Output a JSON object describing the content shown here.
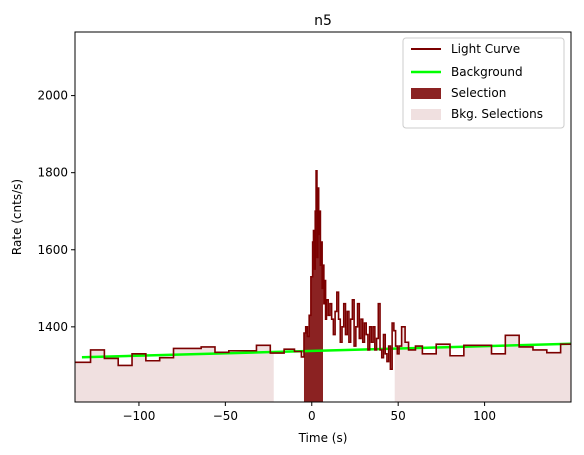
{
  "chart_data": {
    "type": "line",
    "title": "n5",
    "xlabel": "Time (s)",
    "ylabel": "Rate (cnts/s)",
    "xlim": [
      -137,
      150
    ],
    "ylim": [
      1205,
      2165
    ],
    "xticks": [
      -100,
      -50,
      0,
      50,
      100
    ],
    "yticks": [
      1400,
      1600,
      1800,
      2000
    ],
    "legend_position": "top-right",
    "colors": {
      "light_curve": "#7b0000",
      "background": "#00ff00",
      "selection": "#8b2222",
      "bkg_selection": "#f0e0e0"
    },
    "legend": [
      "Light Curve",
      "Background",
      "Selection",
      "Bkg. Selections"
    ],
    "light_curve": {
      "name": "Light Curve",
      "steps": [
        [
          -137,
          1308
        ],
        [
          -128,
          1340
        ],
        [
          -120,
          1318
        ],
        [
          -112,
          1300
        ],
        [
          -104,
          1330
        ],
        [
          -96,
          1312
        ],
        [
          -88,
          1320
        ],
        [
          -80,
          1344
        ],
        [
          -64,
          1348
        ],
        [
          -56,
          1334
        ],
        [
          -48,
          1338
        ],
        [
          -40,
          1338
        ],
        [
          -32,
          1352
        ],
        [
          -24,
          1332
        ],
        [
          -16,
          1342
        ],
        [
          -10,
          1336
        ],
        [
          -6,
          1322
        ],
        [
          -4.5,
          1384
        ],
        [
          -3.5,
          1400
        ],
        [
          -2.5,
          1375
        ],
        [
          -1.5,
          1430
        ],
        [
          -0.5,
          1530
        ],
        [
          0.5,
          1620
        ],
        [
          1,
          1650
        ],
        [
          1.5,
          1550
        ],
        [
          2,
          1700
        ],
        [
          2.5,
          1805
        ],
        [
          3,
          1580
        ],
        [
          3.5,
          1760
        ],
        [
          4,
          1640
        ],
        [
          4.5,
          1700
        ],
        [
          5,
          1560
        ],
        [
          5.5,
          1620
        ],
        [
          6,
          1500
        ],
        [
          6.5,
          1560
        ],
        [
          7,
          1460
        ],
        [
          7.5,
          1520
        ],
        [
          8,
          1420
        ],
        [
          8.5,
          1470
        ],
        [
          9.5,
          1430
        ],
        [
          10.5,
          1460
        ],
        [
          11.5,
          1420
        ],
        [
          12.5,
          1380
        ],
        [
          13.5,
          1440
        ],
        [
          14.5,
          1490
        ],
        [
          15.5,
          1420
        ],
        [
          16.5,
          1360
        ],
        [
          17.5,
          1400
        ],
        [
          18.5,
          1460
        ],
        [
          19.5,
          1380
        ],
        [
          20.5,
          1440
        ],
        [
          21.5,
          1360
        ],
        [
          22.5,
          1420
        ],
        [
          23.5,
          1470
        ],
        [
          24.5,
          1350
        ],
        [
          25.5,
          1400
        ],
        [
          26.5,
          1460
        ],
        [
          27.5,
          1370
        ],
        [
          28.5,
          1420
        ],
        [
          29.5,
          1360
        ],
        [
          30.5,
          1410
        ],
        [
          31.5,
          1380
        ],
        [
          32.5,
          1340
        ],
        [
          33.5,
          1400
        ],
        [
          34.5,
          1360
        ],
        [
          35.5,
          1400
        ],
        [
          36.5,
          1340
        ],
        [
          37.5,
          1370
        ],
        [
          38.5,
          1460
        ],
        [
          39.5,
          1340
        ],
        [
          40.5,
          1320
        ],
        [
          41.5,
          1380
        ],
        [
          42.5,
          1330
        ],
        [
          43.5,
          1310
        ],
        [
          44.5,
          1350
        ],
        [
          45.5,
          1290
        ],
        [
          46.5,
          1410
        ],
        [
          47.5,
          1390
        ],
        [
          48.5,
          1350
        ],
        [
          49.5,
          1330
        ],
        [
          50.5,
          1350
        ],
        [
          52,
          1400
        ],
        [
          54,
          1360
        ],
        [
          56,
          1340
        ],
        [
          60,
          1350
        ],
        [
          64,
          1330
        ],
        [
          72,
          1355
        ],
        [
          80,
          1325
        ],
        [
          88,
          1352
        ],
        [
          104,
          1330
        ],
        [
          112,
          1378
        ],
        [
          120,
          1348
        ],
        [
          128,
          1340
        ],
        [
          136,
          1333
        ],
        [
          144,
          1355
        ],
        [
          150,
          1355
        ]
      ]
    },
    "background": {
      "name": "Background",
      "x": [
        -133,
        150
      ],
      "y": [
        1321,
        1356
      ]
    },
    "selection": {
      "name": "Selection",
      "range": [
        -4.5,
        6.5
      ]
    },
    "bkg_selections": {
      "name": "Bkg. Selections",
      "ranges": [
        [
          -137,
          -22
        ],
        [
          48,
          150
        ]
      ]
    }
  }
}
